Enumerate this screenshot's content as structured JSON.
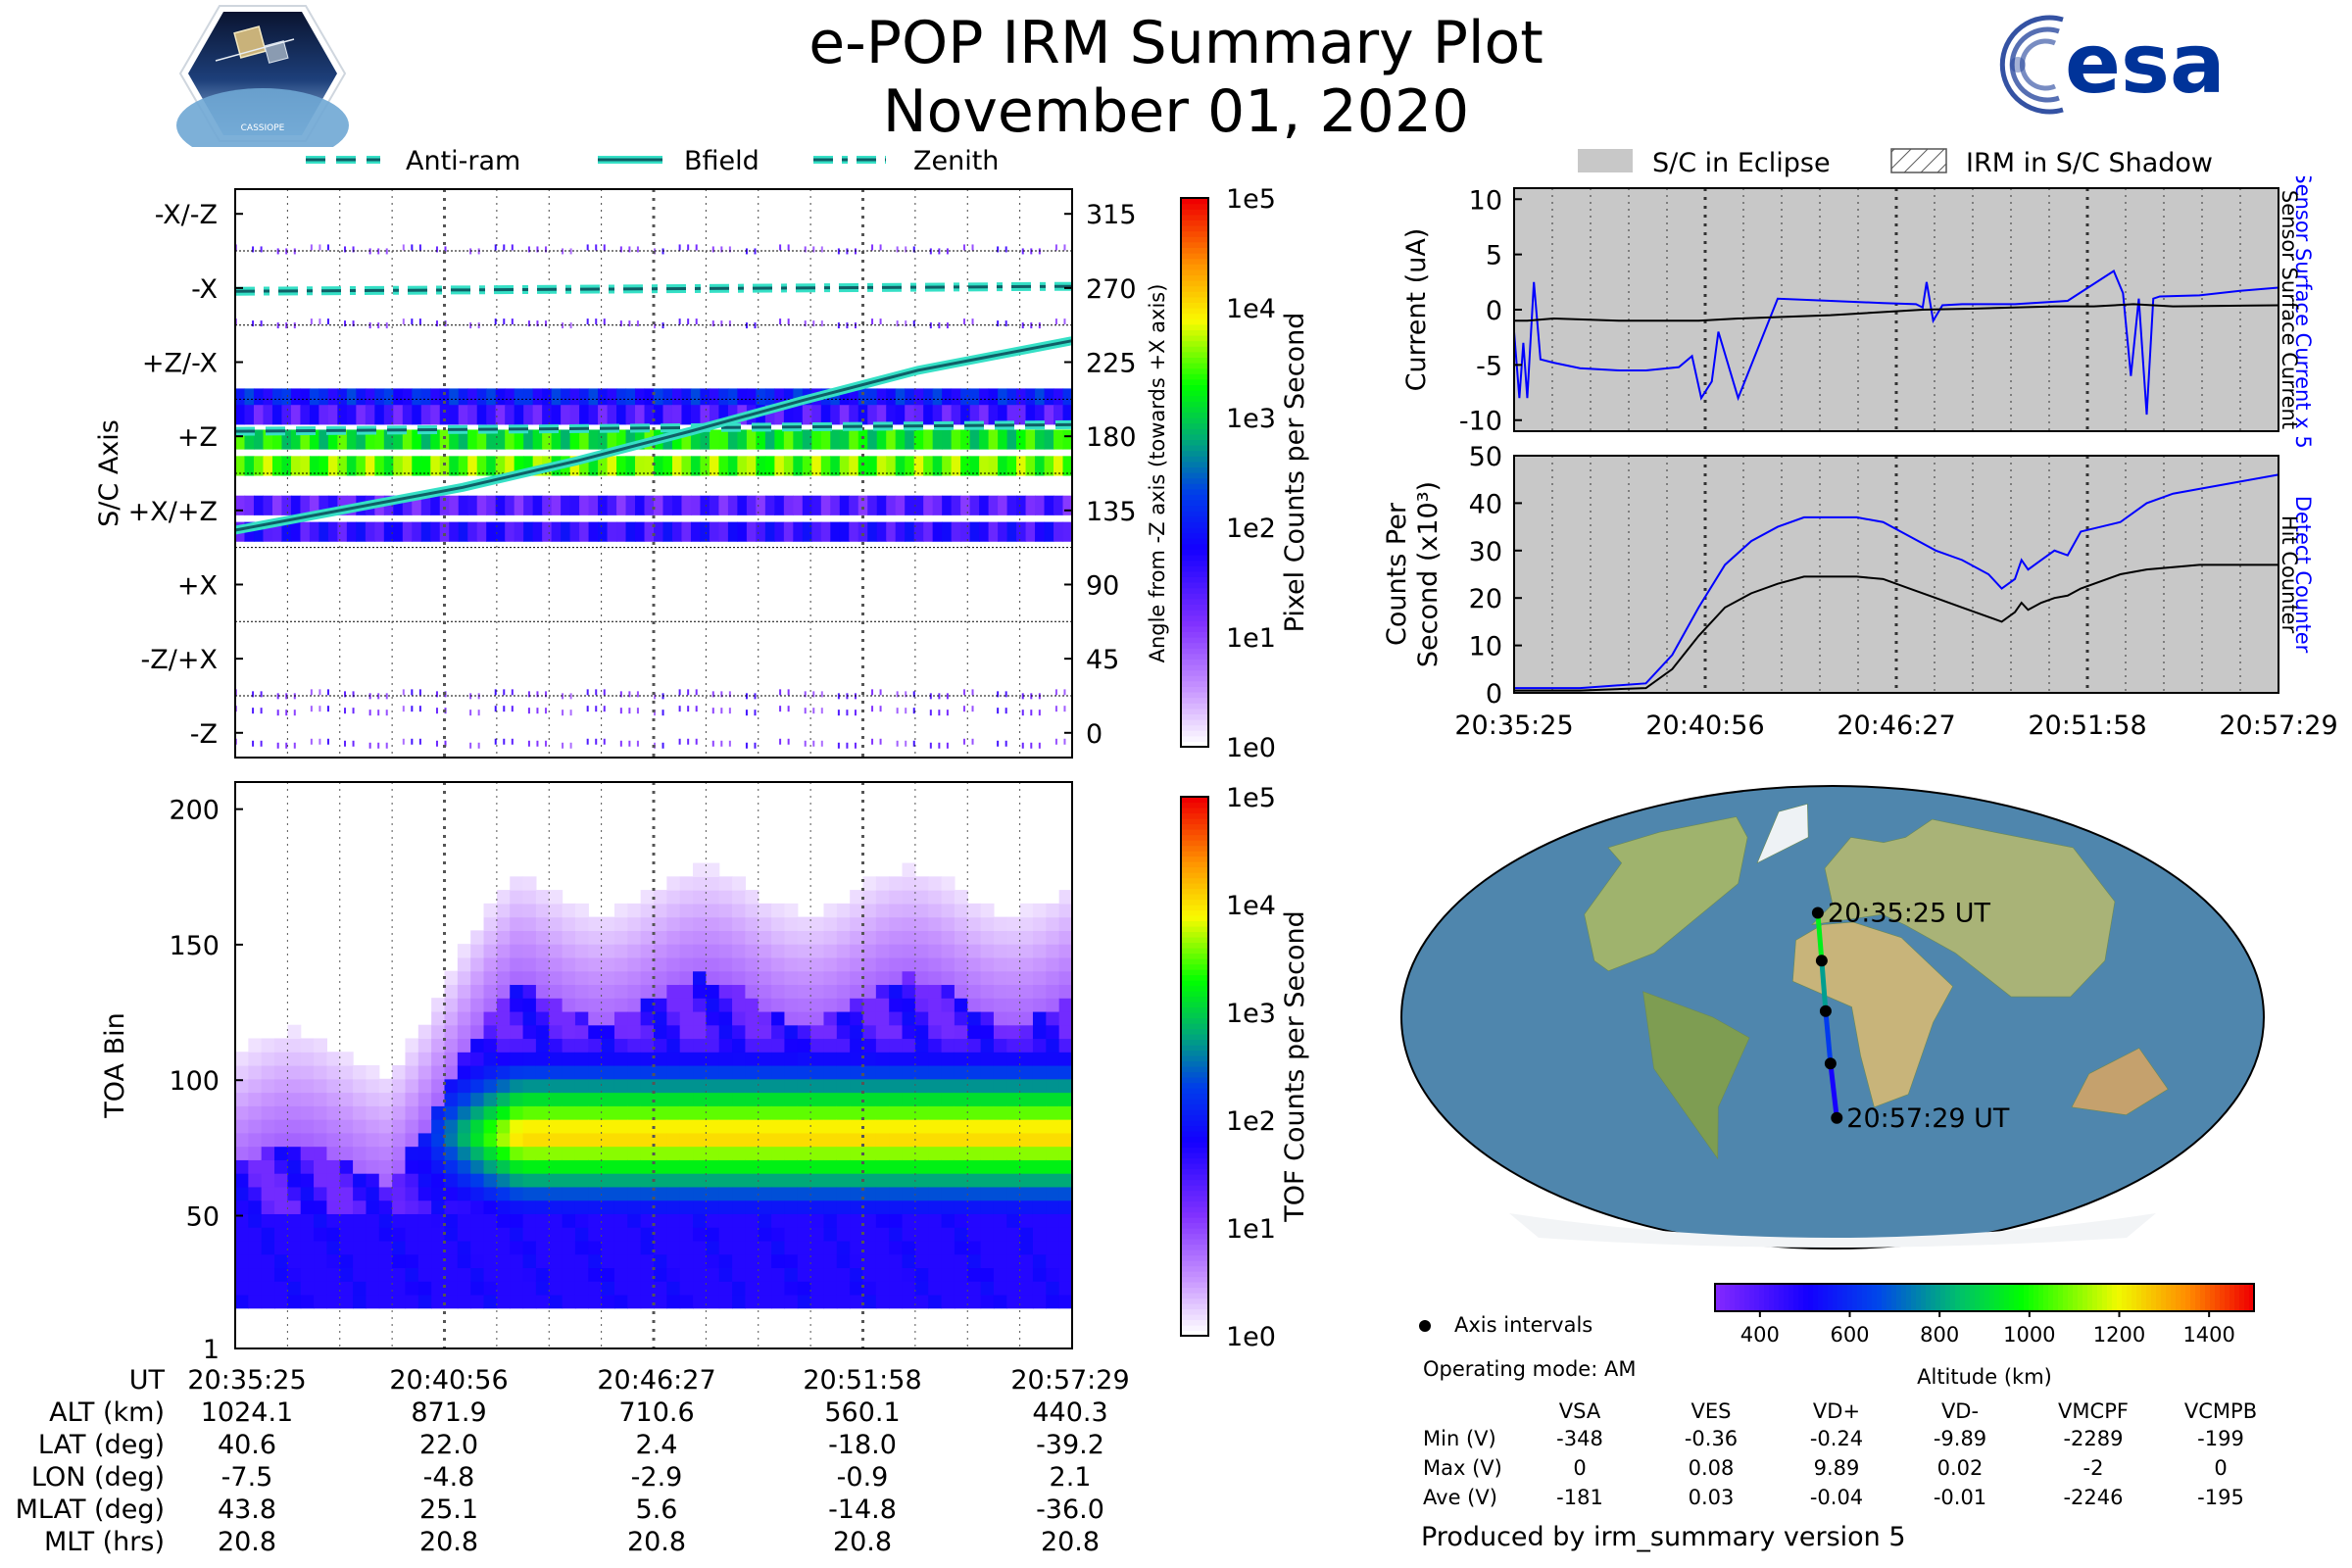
{
  "header": {
    "title": "e-POP IRM Summary Plot",
    "date": "November 01, 2020",
    "mission_logo_text": "CASSIOPE",
    "agency_logo_text": "esa"
  },
  "left_legend": [
    "Anti-ram",
    "Bfield",
    "Zenith"
  ],
  "right_legend": [
    "S/C in Eclipse",
    "IRM in S/C Shadow"
  ],
  "time_ticks": [
    "20:35:25",
    "20:40:56",
    "20:46:27",
    "20:51:58",
    "20:57:29"
  ],
  "colors": {
    "cyan": "#35e0c6",
    "teal_dark": "#0f5f66",
    "blue": "#0000ff",
    "eclipse_gray": "#c8c8c8",
    "orbit_map_ocean": "#4f86ad"
  },
  "chart_data": [
    {
      "id": "sc_axis",
      "type": "heatmap",
      "title": "",
      "ylabel": "S/C Axis",
      "y2label": "Angle from -Z axis (towards +X axis)",
      "colorbar_label": "Pixel Counts per Second",
      "colorbar_ticks": [
        "1e5",
        "1e4",
        "1e3",
        "1e2",
        "1e1",
        "1e0"
      ],
      "axis_labels": [
        "-X/-Z",
        "-X",
        "+Z/-X",
        "+Z",
        "+X/+Z",
        "+X",
        "-Z/+X",
        "-Z"
      ],
      "angle_ticks": [
        315,
        270,
        225,
        180,
        135,
        90,
        45,
        0
      ],
      "ylim": [
        -15,
        330
      ],
      "series": [
        {
          "name": "Anti-ram",
          "x": [
            0,
            22.07
          ],
          "values": [
            183,
            187
          ]
        },
        {
          "name": "Bfield",
          "x": [
            0,
            3,
            6,
            9,
            12,
            15,
            18,
            22.07
          ],
          "values": [
            123,
            136,
            149,
            165,
            183,
            202,
            220,
            238
          ]
        },
        {
          "name": "Zenith",
          "x": [
            0,
            22.07
          ],
          "values": [
            268,
            271
          ]
        }
      ],
      "bands": [
        {
          "center": 203,
          "level": 2.0
        },
        {
          "center": 193,
          "level": 1.5
        },
        {
          "center": 178,
          "level": 3.2
        },
        {
          "center": 162,
          "level": 3.5
        },
        {
          "center": 138,
          "level": 1.4
        },
        {
          "center": 122,
          "level": 1.6
        }
      ]
    },
    {
      "id": "toa",
      "type": "heatmap",
      "ylabel": "TOA Bin",
      "colorbar_label": "TOF Counts per Second",
      "colorbar_ticks": [
        "1e5",
        "1e4",
        "1e3",
        "1e2",
        "1e1",
        "1e0"
      ],
      "yticks": [
        200,
        150,
        100,
        50,
        1
      ],
      "ylim": [
        1,
        210
      ],
      "core_center_bin": 80,
      "core_peak_level": 3.0
    },
    {
      "id": "current",
      "type": "line",
      "ylabel": "Current (uA)",
      "y2label_a": "Sensor Surface Current x 5",
      "y2label_b": "Sensor Surface Current",
      "yticks": [
        10,
        5,
        0,
        -5,
        -10
      ],
      "ylim": [
        -11,
        11
      ],
      "series": [
        {
          "name": "Sensor Surface Current x 5",
          "x": [
            0,
            0.4,
            0.7,
            1.0,
            1.5,
            2.0,
            3.0,
            5.0,
            8.0,
            10.0,
            12.5,
            13.5,
            14.2,
            15.0,
            15.5,
            17.0,
            20.0,
            24.0,
            28.0,
            30.5,
            31.0,
            31.3,
            31.8,
            32.5,
            34.0,
            38.0,
            42.0,
            45.5,
            46.2,
            46.8,
            47.4,
            48.0,
            48.5,
            49.0,
            52.0,
            55.0,
            58.0
          ],
          "values": [
            -2,
            -8,
            -3,
            -8,
            2.5,
            -4.5,
            -4.8,
            -5.3,
            -5.5,
            -5.5,
            -5.2,
            -4.2,
            -8,
            -6.5,
            -2,
            -8,
            1,
            0.8,
            0.6,
            0.5,
            0.2,
            2.5,
            -1,
            0.4,
            0.5,
            0.5,
            0.8,
            3.5,
            1.5,
            -6,
            1,
            -9.5,
            1,
            1.2,
            1.3,
            1.7,
            2
          ]
        },
        {
          "name": "Sensor Surface Current",
          "x": [
            0,
            1,
            3,
            8,
            14,
            17,
            24,
            31,
            35,
            41,
            44,
            47,
            50,
            58
          ],
          "values": [
            -1,
            -1,
            -0.8,
            -1,
            -1,
            -0.8,
            -0.5,
            0,
            0.1,
            0.3,
            0.3,
            0.5,
            0.3,
            0.4
          ]
        }
      ]
    },
    {
      "id": "counts",
      "type": "line",
      "ylabel": "Counts Per Second (x10^3)",
      "y2label_a": "Detect Counter",
      "y2label_b": "Hit Counter",
      "xticks": [
        "20:35:25",
        "20:40:56",
        "20:46:27",
        "20:51:58",
        "20:57:29"
      ],
      "yticks": [
        50,
        40,
        30,
        20,
        10,
        0
      ],
      "ylim": [
        0,
        50
      ],
      "series": [
        {
          "name": "Detect Counter",
          "x": [
            0,
            5,
            10,
            12,
            14,
            16,
            18,
            20,
            22,
            26,
            28,
            30,
            32,
            34,
            36,
            37,
            38,
            38.5,
            39,
            40,
            41,
            42,
            43,
            46,
            48,
            50,
            52,
            55,
            58
          ],
          "values": [
            1,
            1,
            2,
            8,
            18,
            27,
            32,
            35,
            37,
            37,
            36,
            33,
            30,
            28,
            25,
            22,
            24,
            28,
            26,
            28,
            30,
            29,
            34,
            36,
            40,
            42,
            43,
            44.5,
            46
          ]
        },
        {
          "name": "Hit Counter",
          "x": [
            0,
            5,
            10,
            12,
            14,
            16,
            18,
            20,
            22,
            26,
            28,
            30,
            32,
            34,
            36,
            37,
            38,
            38.5,
            39,
            40,
            41,
            42,
            43,
            46,
            48,
            50,
            52,
            55,
            58
          ],
          "values": [
            0.5,
            0.5,
            1,
            5,
            12,
            18,
            21,
            23,
            24.5,
            24.5,
            24,
            22,
            20,
            18,
            16,
            15,
            17,
            19,
            17.5,
            19,
            20,
            20.5,
            22,
            25,
            26,
            26.5,
            27,
            27,
            27
          ]
        }
      ]
    },
    {
      "id": "orbit_map",
      "type": "scatter",
      "series": [
        {
          "name": "track",
          "x": [
            -7.5,
            -4.8,
            -2.9,
            -0.9,
            2.1
          ],
          "values": [
            40.6,
            22.0,
            2.4,
            -18.0,
            -39.2
          ]
        }
      ],
      "labels": [
        "20:35:25 UT",
        "20:57:29 UT"
      ],
      "colorbar_label": "Altitude (km)",
      "colorbar_ticks": [
        400,
        600,
        800,
        1000,
        1200,
        1400
      ],
      "legend_label": "Axis intervals",
      "operating_mode": "Operating mode: AM"
    }
  ],
  "ephemeris": {
    "row_labels": [
      "UT",
      "ALT (km)",
      "LAT (deg)",
      "LON (deg)",
      "MLAT (deg)",
      "MLT (hrs)"
    ],
    "rows": [
      [
        "20:35:25",
        "20:40:56",
        "20:46:27",
        "20:51:58",
        "20:57:29"
      ],
      [
        "1024.1",
        "871.9",
        "710.6",
        "560.1",
        "440.3"
      ],
      [
        "40.6",
        "22.0",
        "2.4",
        "-18.0",
        "-39.2"
      ],
      [
        "-7.5",
        "-4.8",
        "-2.9",
        "-0.9",
        "2.1"
      ],
      [
        "43.8",
        "25.1",
        "5.6",
        "-14.8",
        "-36.0"
      ],
      [
        "20.8",
        "20.8",
        "20.8",
        "20.8",
        "20.8"
      ]
    ]
  },
  "voltages": {
    "columns": [
      "VSA",
      "VES",
      "VD+",
      "VD-",
      "VMCPF",
      "VCMPB"
    ],
    "rows": [
      {
        "label": "Min (V)",
        "values": [
          "-348",
          "-0.36",
          "-0.24",
          "-9.89",
          "-2289",
          "-199"
        ]
      },
      {
        "label": "Max (V)",
        "values": [
          "0",
          "0.08",
          "9.89",
          "0.02",
          "-2",
          "0"
        ]
      },
      {
        "label": "Ave (V)",
        "values": [
          "-181",
          "0.03",
          "-0.04",
          "-0.01",
          "-2246",
          "-195"
        ]
      }
    ]
  },
  "footer": "Produced by irm_summary version 5"
}
